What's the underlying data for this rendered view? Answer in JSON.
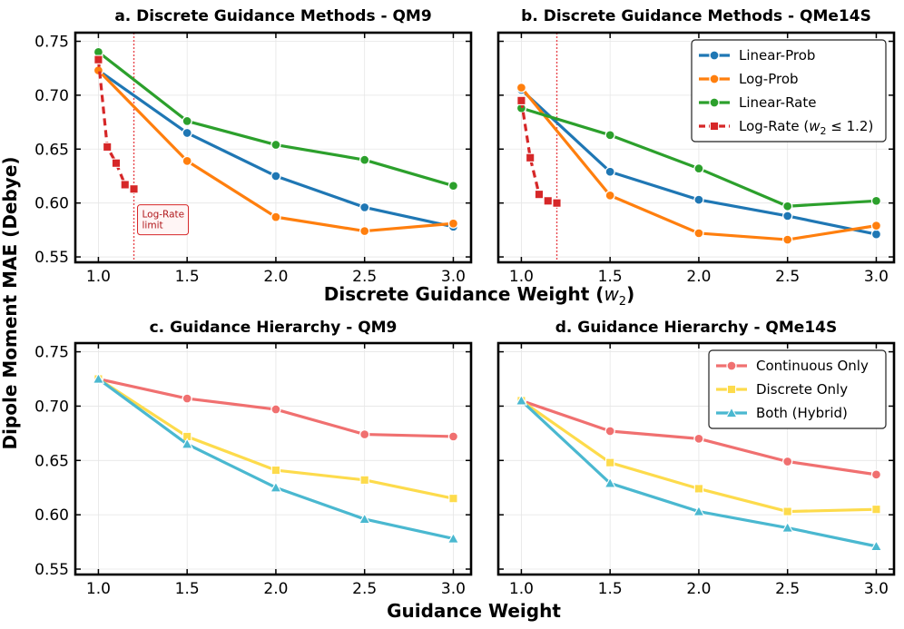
{
  "figure": {
    "x_label_top": "Discrete Guidance Weight (",
    "x_label_top_var": "w",
    "x_label_top_sub": "2",
    "x_label_top_end": ")",
    "x_label_bottom": "Guidance Weight",
    "y_label": "Dipole Moment MAE (Debye)"
  },
  "chart_data": [
    {
      "id": "a",
      "type": "line",
      "title": "a. Discrete Guidance Methods - QM9",
      "xlim": [
        0.87,
        3.1
      ],
      "ylim": [
        0.545,
        0.758
      ],
      "xticks": [
        1.0,
        1.5,
        2.0,
        2.5,
        3.0
      ],
      "yticks": [
        0.55,
        0.6,
        0.65,
        0.7,
        0.75
      ],
      "grid": true,
      "series": [
        {
          "name": "Linear-Prob",
          "color": "#1f77b4",
          "marker": "circle",
          "dash": "",
          "x": [
            1.0,
            1.5,
            2.0,
            2.5,
            3.0
          ],
          "y": [
            0.723,
            0.665,
            0.625,
            0.596,
            0.578
          ]
        },
        {
          "name": "Log-Prob",
          "color": "#ff7f0e",
          "marker": "circle",
          "dash": "",
          "x": [
            1.0,
            1.5,
            2.0,
            2.5,
            3.0
          ],
          "y": [
            0.723,
            0.639,
            0.587,
            0.574,
            0.581
          ]
        },
        {
          "name": "Linear-Rate",
          "color": "#2ca02c",
          "marker": "circle",
          "dash": "",
          "x": [
            1.0,
            1.5,
            2.0,
            2.5,
            3.0
          ],
          "y": [
            0.74,
            0.676,
            0.654,
            0.64,
            0.616
          ]
        },
        {
          "name": "Log-Rate",
          "color": "#d62728",
          "marker": "square",
          "dash": "8,5",
          "x": [
            1.0,
            1.05,
            1.1,
            1.15,
            1.2
          ],
          "y": [
            0.733,
            0.652,
            0.637,
            0.617,
            0.613
          ]
        }
      ],
      "vline": {
        "x": 1.2,
        "color": "#e8474d"
      },
      "annotation": {
        "lines": [
          "Log-Rate",
          "limit"
        ]
      }
    },
    {
      "id": "b",
      "type": "line",
      "title": "b. Discrete Guidance Methods - QMe14S",
      "xlim": [
        0.87,
        3.1
      ],
      "ylim": [
        0.545,
        0.758
      ],
      "xticks": [
        1.0,
        1.5,
        2.0,
        2.5,
        3.0
      ],
      "yticks": [],
      "grid": true,
      "legend_position": "top-right",
      "series": [
        {
          "name": "Linear-Prob",
          "legend": "Linear-Prob",
          "color": "#1f77b4",
          "marker": "circle",
          "dash": "",
          "x": [
            1.0,
            1.5,
            2.0,
            2.5,
            3.0
          ],
          "y": [
            0.705,
            0.629,
            0.603,
            0.588,
            0.571
          ]
        },
        {
          "name": "Log-Prob",
          "legend": "Log-Prob",
          "color": "#ff7f0e",
          "marker": "circle",
          "dash": "",
          "x": [
            1.0,
            1.5,
            2.0,
            2.5,
            3.0
          ],
          "y": [
            0.707,
            0.607,
            0.572,
            0.566,
            0.579
          ]
        },
        {
          "name": "Linear-Rate",
          "legend": "Linear-Rate",
          "color": "#2ca02c",
          "marker": "circle",
          "dash": "",
          "x": [
            1.0,
            1.5,
            2.0,
            2.5,
            3.0
          ],
          "y": [
            0.688,
            0.663,
            0.632,
            0.597,
            0.602
          ]
        },
        {
          "name": "Log-Rate",
          "legend": "Log-Rate (w2 ≤ 1.2)",
          "color": "#d62728",
          "marker": "square",
          "dash": "8,5",
          "x": [
            1.0,
            1.05,
            1.1,
            1.15,
            1.2
          ],
          "y": [
            0.695,
            0.642,
            0.608,
            0.602,
            0.6
          ]
        }
      ],
      "vline": {
        "x": 1.2,
        "color": "#e8474d"
      }
    },
    {
      "id": "c",
      "type": "line",
      "title": "c. Guidance Hierarchy - QM9",
      "xlim": [
        0.87,
        3.1
      ],
      "ylim": [
        0.545,
        0.758
      ],
      "xticks": [
        1.0,
        1.5,
        2.0,
        2.5,
        3.0
      ],
      "yticks": [
        0.55,
        0.6,
        0.65,
        0.7,
        0.75
      ],
      "grid": true,
      "series": [
        {
          "name": "Continuous Only",
          "color": "#f07070",
          "marker": "circle",
          "dash": "",
          "x": [
            1.0,
            1.5,
            2.0,
            2.5,
            3.0
          ],
          "y": [
            0.725,
            0.707,
            0.697,
            0.674,
            0.672
          ]
        },
        {
          "name": "Discrete Only",
          "color": "#fddb4c",
          "marker": "square",
          "dash": "",
          "x": [
            1.0,
            1.5,
            2.0,
            2.5,
            3.0
          ],
          "y": [
            0.725,
            0.672,
            0.641,
            0.632,
            0.615
          ]
        },
        {
          "name": "Both (Hybrid)",
          "color": "#4ab8d0",
          "marker": "triangle",
          "dash": "",
          "x": [
            1.0,
            1.5,
            2.0,
            2.5,
            3.0
          ],
          "y": [
            0.725,
            0.665,
            0.625,
            0.596,
            0.578
          ]
        }
      ]
    },
    {
      "id": "d",
      "type": "line",
      "title": "d. Guidance Hierarchy - QMe14S",
      "xlim": [
        0.87,
        3.1
      ],
      "ylim": [
        0.545,
        0.758
      ],
      "xticks": [
        1.0,
        1.5,
        2.0,
        2.5,
        3.0
      ],
      "yticks": [],
      "grid": true,
      "legend_position": "top-right",
      "series": [
        {
          "name": "Continuous Only",
          "legend": "Continuous Only",
          "color": "#f07070",
          "marker": "circle",
          "dash": "",
          "x": [
            1.0,
            1.5,
            2.0,
            2.5,
            3.0
          ],
          "y": [
            0.705,
            0.677,
            0.67,
            0.649,
            0.637
          ]
        },
        {
          "name": "Discrete Only",
          "legend": "Discrete Only",
          "color": "#fddb4c",
          "marker": "square",
          "dash": "",
          "x": [
            1.0,
            1.5,
            2.0,
            2.5,
            3.0
          ],
          "y": [
            0.705,
            0.648,
            0.624,
            0.603,
            0.605
          ]
        },
        {
          "name": "Both (Hybrid)",
          "legend": "Both (Hybrid)",
          "color": "#4ab8d0",
          "marker": "triangle",
          "dash": "",
          "x": [
            1.0,
            1.5,
            2.0,
            2.5,
            3.0
          ],
          "y": [
            0.705,
            0.629,
            0.603,
            0.588,
            0.571
          ]
        }
      ]
    }
  ]
}
